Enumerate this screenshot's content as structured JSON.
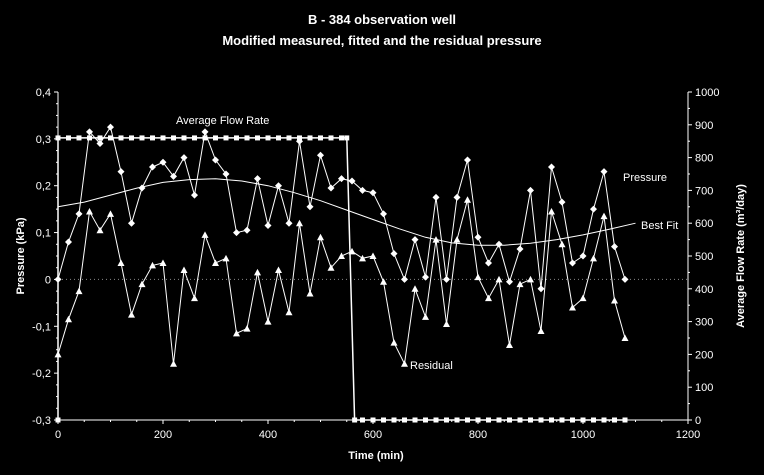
{
  "chart_data": {
    "type": "line",
    "title": "B - 384 observation well",
    "subtitle": "Modified measured, fitted and the residual pressure",
    "xlabel": "Time (min)",
    "ylabel": "Pressure (kPa)",
    "y2label": "Average Flow Rate (m³/day)",
    "xlim": [
      0,
      1200
    ],
    "ylim": [
      -0.3,
      0.4
    ],
    "y2lim": [
      0,
      1000
    ],
    "xticks": [
      "0",
      "200",
      "400",
      "600",
      "800",
      "1000",
      "1200"
    ],
    "yticks": [
      "-0,3",
      "-0,2",
      "-0,1",
      "0",
      "0,1",
      "0,2",
      "0,3",
      "0,4"
    ],
    "y2ticks": [
      "0",
      "100",
      "200",
      "300",
      "400",
      "500",
      "600",
      "700",
      "800",
      "900",
      "1000"
    ],
    "annotations": {
      "flow": "Average Flow Rate",
      "pressure": "Pressure",
      "best_fit": "Best Fit",
      "residual": "Residual"
    },
    "colors": {
      "background": "#000000",
      "foreground": "#ffffff",
      "zero_line": "#888888"
    },
    "series": [
      {
        "axis": "left",
        "marker": "diamond",
        "x": [
          0,
          20,
          40,
          60,
          80,
          100,
          120,
          140,
          160,
          180,
          200,
          220,
          240,
          260,
          280,
          300,
          320,
          340,
          360,
          380,
          400,
          420,
          440,
          460,
          480,
          500,
          520,
          540,
          560,
          580,
          600,
          620,
          640,
          660,
          680,
          700,
          720,
          740,
          760,
          780,
          800,
          820,
          840,
          860,
          880,
          900,
          920,
          940,
          960,
          980,
          1000,
          1020,
          1040,
          1060,
          1080
        ],
        "values": [
          0.0,
          0.08,
          0.14,
          0.315,
          0.29,
          0.325,
          0.23,
          0.12,
          0.195,
          0.24,
          0.25,
          0.22,
          0.26,
          0.18,
          0.315,
          0.255,
          0.225,
          0.1,
          0.105,
          0.215,
          0.115,
          0.2,
          0.12,
          0.295,
          0.155,
          0.265,
          0.195,
          0.215,
          0.21,
          0.19,
          0.185,
          0.14,
          0.055,
          0.0,
          0.085,
          0.005,
          0.175,
          0.0,
          0.175,
          0.255,
          0.09,
          0.035,
          0.075,
          -0.005,
          0.065,
          0.19,
          -0.02,
          0.24,
          0.165,
          0.035,
          0.05,
          0.15,
          0.23,
          0.07,
          0.0
        ]
      },
      {
        "axis": "left",
        "marker": "none",
        "x": [
          0,
          50,
          100,
          150,
          200,
          250,
          300,
          350,
          400,
          450,
          500,
          550,
          600,
          650,
          700,
          750,
          800,
          850,
          900,
          950,
          1000,
          1050,
          1100
        ],
        "values": [
          0.155,
          0.165,
          0.18,
          0.195,
          0.207,
          0.213,
          0.215,
          0.21,
          0.2,
          0.185,
          0.168,
          0.148,
          0.128,
          0.108,
          0.09,
          0.078,
          0.073,
          0.073,
          0.077,
          0.085,
          0.095,
          0.107,
          0.12
        ]
      },
      {
        "axis": "left",
        "marker": "triangle",
        "x": [
          0,
          20,
          40,
          60,
          80,
          100,
          120,
          140,
          160,
          180,
          200,
          220,
          240,
          260,
          280,
          300,
          320,
          340,
          360,
          380,
          400,
          420,
          440,
          460,
          480,
          500,
          520,
          540,
          560,
          580,
          600,
          620,
          640,
          660,
          680,
          700,
          720,
          740,
          760,
          780,
          800,
          820,
          840,
          860,
          880,
          900,
          920,
          940,
          960,
          980,
          1000,
          1020,
          1040,
          1060,
          1080
        ],
        "values": [
          -0.16,
          -0.085,
          -0.025,
          0.145,
          0.105,
          0.14,
          0.035,
          -0.075,
          -0.01,
          0.03,
          0.035,
          -0.18,
          0.02,
          -0.04,
          0.095,
          0.035,
          0.045,
          -0.115,
          -0.105,
          0.015,
          -0.09,
          0.02,
          -0.07,
          0.12,
          -0.03,
          0.09,
          0.025,
          0.05,
          0.06,
          0.045,
          0.05,
          -0.005,
          -0.135,
          -0.18,
          -0.02,
          -0.08,
          0.085,
          -0.095,
          0.085,
          0.17,
          0.005,
          -0.04,
          0.0,
          -0.14,
          -0.01,
          0.0,
          -0.11,
          0.145,
          0.075,
          -0.06,
          -0.04,
          0.045,
          0.135,
          -0.045,
          -0.125
        ]
      },
      {
        "axis": "right",
        "marker": "square",
        "x": [
          0,
          0,
          20,
          40,
          60,
          80,
          100,
          120,
          140,
          160,
          180,
          200,
          220,
          240,
          260,
          280,
          300,
          320,
          340,
          360,
          380,
          400,
          420,
          440,
          460,
          480,
          500,
          520,
          540,
          550,
          565,
          580,
          600,
          620,
          640,
          660,
          680,
          700,
          720,
          740,
          760,
          780,
          800,
          820,
          840,
          860,
          880,
          900,
          920,
          940,
          960,
          980,
          1000,
          1020,
          1040,
          1060,
          1080
        ],
        "values": [
          0,
          860,
          860,
          860,
          860,
          860,
          860,
          860,
          860,
          860,
          860,
          860,
          860,
          860,
          860,
          860,
          860,
          860,
          860,
          860,
          860,
          860,
          860,
          860,
          860,
          860,
          860,
          860,
          860,
          860,
          0,
          0,
          0,
          0,
          0,
          0,
          0,
          0,
          0,
          0,
          0,
          0,
          0,
          0,
          0,
          0,
          0,
          0,
          0,
          0,
          0,
          0,
          0,
          0,
          0,
          0,
          0
        ]
      }
    ]
  }
}
